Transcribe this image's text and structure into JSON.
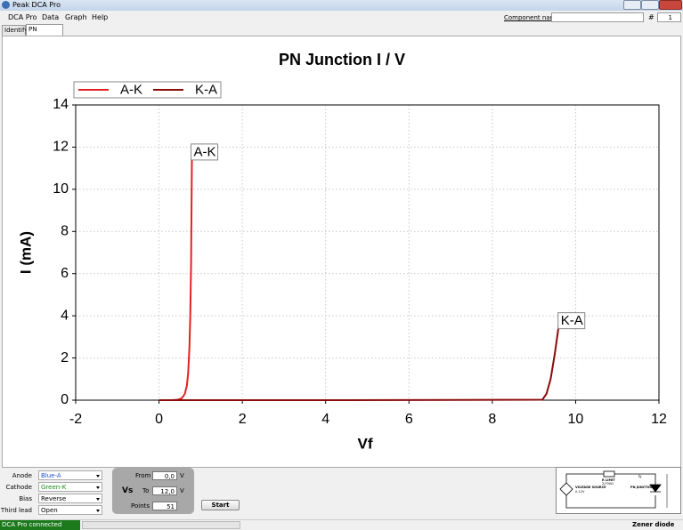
{
  "window": {
    "title": "Peak DCA Pro"
  },
  "menu": [
    "DCA Pro",
    "Data",
    "Graph",
    "Help"
  ],
  "toolbar": {
    "component_label": "Component name",
    "hash": "#",
    "count": "1"
  },
  "tabs": [
    "Identify",
    "PN Junction"
  ],
  "chart_data": {
    "type": "line",
    "title": "PN Junction I / V",
    "xlabel": "Vf",
    "ylabel": "I (mA)",
    "xlim": [
      -2,
      12
    ],
    "ylim": [
      0,
      14
    ],
    "xticks": [
      -2,
      0,
      2,
      4,
      6,
      8,
      10,
      12
    ],
    "yticks": [
      0,
      2,
      4,
      6,
      8,
      10,
      12,
      14
    ],
    "grid": true,
    "legend": "top-left",
    "series": [
      {
        "name": "A-K",
        "color": "#e32222",
        "x": [
          0,
          0.3,
          0.45,
          0.55,
          0.62,
          0.67,
          0.7,
          0.73,
          0.75,
          0.77,
          0.78,
          0.79
        ],
        "values": [
          0,
          0,
          0.02,
          0.1,
          0.3,
          0.7,
          1.3,
          2.5,
          4,
          6.5,
          9,
          11.6
        ]
      },
      {
        "name": "K-A",
        "color": "#8b0a0a",
        "x": [
          0,
          4,
          9.2,
          9.3,
          9.4,
          9.5,
          9.6
        ],
        "values": [
          0,
          0,
          0.02,
          0.3,
          1,
          2.2,
          3.6
        ]
      }
    ],
    "annotations": [
      {
        "text": "A-K",
        "x": 0.79,
        "y": 11.6
      },
      {
        "text": "K-A",
        "x": 9.6,
        "y": 3.6
      }
    ]
  },
  "controls": [
    {
      "label": "Anode",
      "value": "Blue-A"
    },
    {
      "label": "Cathode",
      "value": "Green-K"
    },
    {
      "label": "Bias",
      "value": "Reverse"
    },
    {
      "label": "Third lead",
      "value": "Open"
    }
  ],
  "vs": {
    "label": "Vs",
    "from_label": "From",
    "from": "0,0",
    "to_label": "To",
    "to": "12,0",
    "unit": "V",
    "points_label": "Points",
    "points": "51"
  },
  "start": "Start",
  "diagram": {
    "resistor": "R LIMIT",
    "resistor_value": "2/700Ω",
    "source": "VOLTAGE SOURCE",
    "source_range": "0-12V",
    "device": "PN JUNCTION",
    "current": "Iy"
  },
  "status": {
    "left": "DCA Pro connected",
    "right": "Zener diode"
  }
}
